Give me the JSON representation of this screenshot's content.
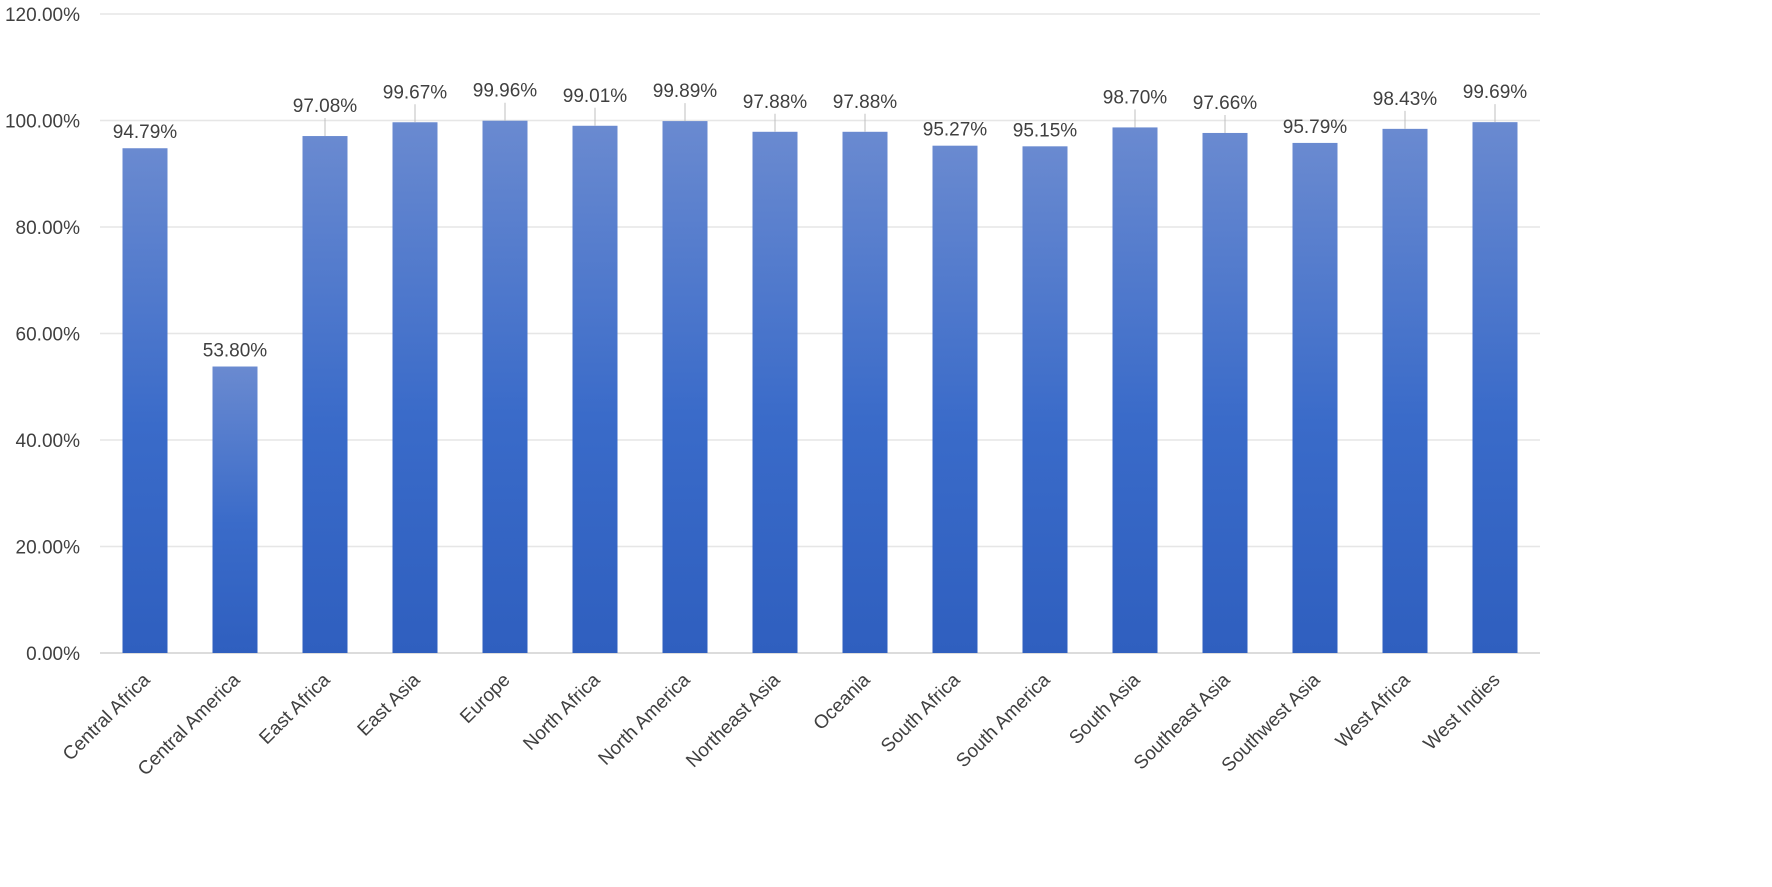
{
  "chart_data": {
    "type": "bar",
    "categories": [
      "Central Africa",
      "Central America",
      "East Africa",
      "East Asia",
      "Europe",
      "North Africa",
      "North America",
      "Northeast Asia",
      "Oceania",
      "South Africa",
      "South America",
      "South Asia",
      "Southeast Asia",
      "Southwest Asia",
      "West Africa",
      "West Indies"
    ],
    "values": [
      94.79,
      53.8,
      97.08,
      99.67,
      99.96,
      99.01,
      99.89,
      97.88,
      97.88,
      95.27,
      95.15,
      98.7,
      97.66,
      95.79,
      98.43,
      99.69
    ],
    "data_labels": [
      "94.79%",
      "53.80%",
      "97.08%",
      "99.67%",
      "99.96%",
      "99.01%",
      "99.89%",
      "97.88%",
      "97.88%",
      "95.27%",
      "95.15%",
      "98.70%",
      "97.66%",
      "95.79%",
      "98.43%",
      "99.69%"
    ],
    "y_ticks": [
      "0.00%",
      "20.00%",
      "40.00%",
      "60.00%",
      "80.00%",
      "100.00%",
      "120.00%"
    ],
    "y_tick_values": [
      0,
      20,
      40,
      60,
      80,
      100,
      120
    ],
    "ylim": [
      0,
      120
    ],
    "grid": true,
    "legend": "none",
    "title": "",
    "xlabel": "",
    "ylabel": "",
    "colors": {
      "bar_top": "#6a8ad0",
      "bar_mid": "#3a6bc9",
      "bar_bottom": "#2f5fbf"
    }
  }
}
